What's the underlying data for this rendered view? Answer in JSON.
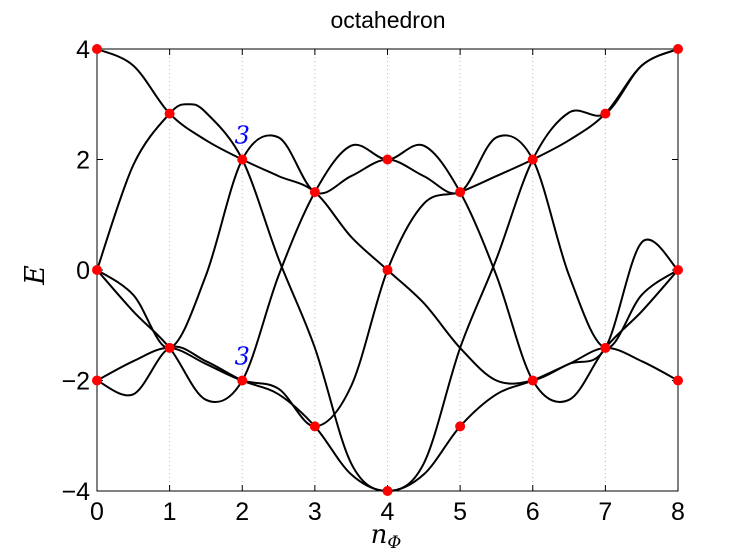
{
  "chart_data": {
    "type": "line",
    "title": "octahedron",
    "xlabel": "n",
    "xlabel_sub": "Φ",
    "ylabel": "E",
    "xlim": [
      0,
      8
    ],
    "ylim": [
      -4,
      4
    ],
    "x_ticks": [
      0,
      1,
      2,
      3,
      4,
      5,
      6,
      7,
      8
    ],
    "y_ticks": [
      -4,
      -2,
      0,
      2,
      4
    ],
    "y_tick_labels": [
      "−4",
      "−2",
      "0",
      "2",
      "4"
    ],
    "grid": "vertical dotted at integer x",
    "line_color": "#000000",
    "marker_color": "#ff0000",
    "annotation_color": "#0000ff",
    "annotations": [
      {
        "text": "3",
        "x": 2,
        "y": 2.45
      },
      {
        "text": "3",
        "x": 2,
        "y": -1.55
      }
    ],
    "points": [
      {
        "x": 0,
        "y": 4
      },
      {
        "x": 0,
        "y": 0
      },
      {
        "x": 0,
        "y": -2
      },
      {
        "x": 1,
        "y": 2.83
      },
      {
        "x": 1,
        "y": -1.41
      },
      {
        "x": 2,
        "y": 2
      },
      {
        "x": 2,
        "y": -2
      },
      {
        "x": 3,
        "y": 1.41
      },
      {
        "x": 3,
        "y": -2.83
      },
      {
        "x": 4,
        "y": 2
      },
      {
        "x": 4,
        "y": 0
      },
      {
        "x": 4,
        "y": -4
      },
      {
        "x": 5,
        "y": 1.41
      },
      {
        "x": 5,
        "y": -2.83
      },
      {
        "x": 6,
        "y": 2
      },
      {
        "x": 6,
        "y": -2
      },
      {
        "x": 7,
        "y": 2.83
      },
      {
        "x": 7,
        "y": -1.41
      },
      {
        "x": 8,
        "y": 4
      },
      {
        "x": 8,
        "y": 0
      },
      {
        "x": 8,
        "y": -2
      }
    ],
    "series": [
      {
        "x": [
          0,
          0.5,
          1,
          1.5,
          2,
          2.5,
          3,
          3.5,
          4,
          4.5,
          5,
          5.5,
          6,
          6.5,
          7,
          7.5,
          8
        ],
        "y": [
          4,
          3.7,
          2.83,
          2.35,
          2,
          1.7,
          1.41,
          0.6,
          0,
          -0.6,
          -1.41,
          -2.0,
          -2,
          -1.7,
          -1.41,
          -1.65,
          -2
        ]
      },
      {
        "x": [
          0,
          0.5,
          1,
          1.5,
          2,
          2.5,
          3,
          3.5,
          4,
          4.5,
          5,
          5.5,
          6,
          6.5,
          7,
          7.5,
          8
        ],
        "y": [
          -2,
          -2.25,
          -1.41,
          -1.65,
          -2,
          -2.25,
          -2.83,
          -3.7,
          -4,
          -3.7,
          -2.83,
          -2.25,
          -2,
          -1.7,
          -1.41,
          0.5,
          0
        ]
      },
      {
        "x": [
          0,
          0.5,
          1,
          1.25,
          1.5,
          2,
          2.5,
          3,
          3.5,
          4,
          4.5,
          5,
          5.5,
          6,
          6.5,
          7,
          7.5,
          8
        ],
        "y": [
          0,
          1.9,
          2.83,
          3.0,
          2.85,
          2,
          0.2,
          -1.41,
          -3.5,
          -4,
          -3.5,
          -1.41,
          0.2,
          2,
          2.85,
          2.83,
          3.7,
          4
        ]
      },
      {
        "x": [
          0,
          0.5,
          1,
          1.5,
          2,
          2.5,
          3,
          3.5,
          4,
          4.5,
          5,
          5.5,
          6,
          6.5,
          7,
          7.5,
          8
        ],
        "y": [
          0,
          -0.75,
          -1.41,
          -2.35,
          -2,
          -0.1,
          1.41,
          2.25,
          2,
          2.25,
          1.41,
          -0.1,
          -2,
          -2.35,
          -1.41,
          -0.75,
          0
        ]
      },
      {
        "x": [
          0,
          0.5,
          1,
          1.5,
          2,
          2.5,
          3,
          3.5,
          4,
          4.5,
          5,
          5.5,
          6,
          6.5,
          7,
          7.5,
          8
        ],
        "y": [
          -2,
          -1.65,
          -1.41,
          -1.7,
          -2,
          -2.15,
          -2.83,
          -2.1,
          0,
          1.2,
          1.41,
          1.7,
          2,
          2.35,
          2.83,
          3.7,
          4
        ]
      },
      {
        "x": [
          0,
          0.5,
          1,
          1.5,
          2,
          2.5,
          3,
          3.5,
          4,
          4.5,
          5,
          5.5,
          6,
          6.5,
          7,
          7.5,
          8
        ],
        "y": [
          0,
          -0.45,
          -1.41,
          -0.1,
          2,
          2.4,
          1.41,
          1.7,
          2,
          1.7,
          1.41,
          2.4,
          2,
          -0.1,
          -1.41,
          -0.45,
          0
        ]
      }
    ]
  }
}
